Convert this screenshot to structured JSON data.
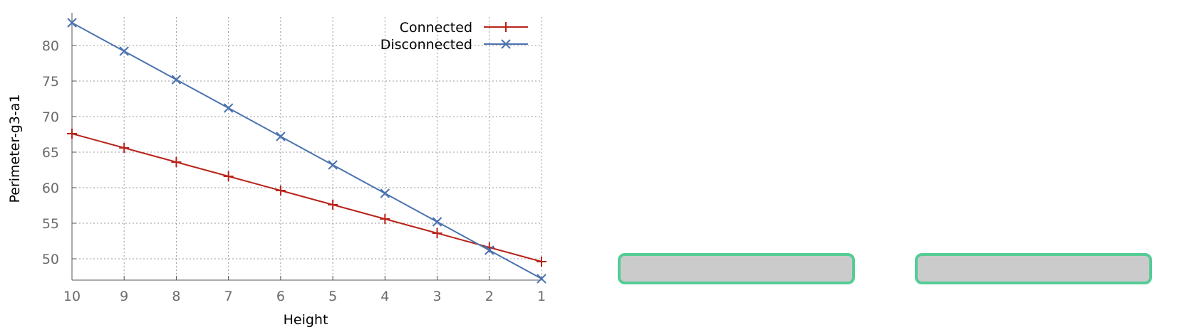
{
  "chart_data": {
    "type": "line",
    "xlabel": "Height",
    "ylabel": "Perimeter-g3-a1",
    "x": [
      10,
      9,
      8,
      7,
      6,
      5,
      4,
      3,
      2,
      1
    ],
    "x_reversed": true,
    "xlim": [
      10,
      1
    ],
    "ylim": [
      47,
      84
    ],
    "yticks": [
      50,
      55,
      60,
      65,
      70,
      75,
      80
    ],
    "grid": true,
    "legend": "top-right",
    "series": [
      {
        "name": "Connected",
        "color": "#b8231a",
        "marker": "plus",
        "values": [
          67.6,
          65.6,
          63.6,
          61.6,
          59.6,
          57.6,
          55.6,
          53.6,
          51.6,
          49.6
        ]
      },
      {
        "name": "Disconnected",
        "color": "#4a72b0",
        "marker": "x",
        "values": [
          83.2,
          79.2,
          75.2,
          71.2,
          67.2,
          63.2,
          59.2,
          55.2,
          51.2,
          47.2
        ]
      }
    ]
  },
  "slots": [
    {
      "fill": "#cbcbcb",
      "border": "#55cc96"
    },
    {
      "fill": "#cbcbcb",
      "border": "#55cc96"
    }
  ]
}
